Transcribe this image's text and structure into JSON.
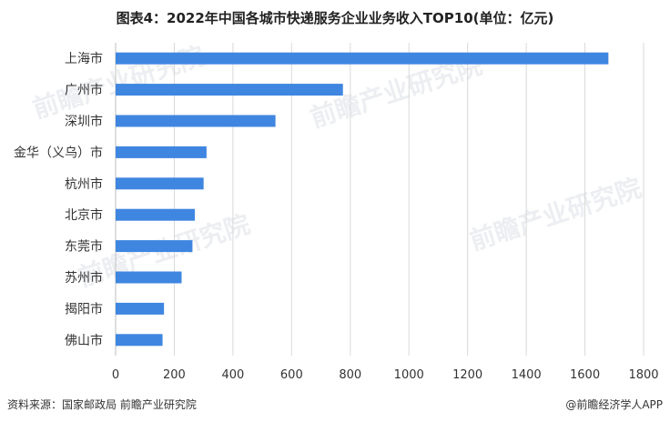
{
  "title": "图表4：2022年中国各城市快递服务企业业务收入TOP10(单位：亿元)",
  "source": "资料来源：国家邮政局 前瞻产业研究院",
  "brand": "@前瞻经济学人APP",
  "watermark": "前瞻产业研究院",
  "colors": {
    "bar": "#3f86e0",
    "grid": "#d9d9d9",
    "axis": "#bfbfbf"
  },
  "chart_data": {
    "type": "bar",
    "orientation": "horizontal",
    "title": "图表4：2022年中国各城市快递服务企业业务收入TOP10(单位：亿元)",
    "categories": [
      "上海市",
      "广州市",
      "深圳市",
      "金华（义乌）市",
      "杭州市",
      "北京市",
      "东莞市",
      "苏州市",
      "揭阳市",
      "佛山市"
    ],
    "values": [
      1680,
      775,
      545,
      310,
      300,
      270,
      262,
      225,
      165,
      160
    ],
    "xlim": [
      0,
      1800
    ],
    "xticks": [
      0,
      200,
      400,
      600,
      800,
      1000,
      1200,
      1400,
      1600,
      1800
    ],
    "grid": "vertical",
    "xlabel": "",
    "ylabel": "",
    "legend": "none"
  }
}
